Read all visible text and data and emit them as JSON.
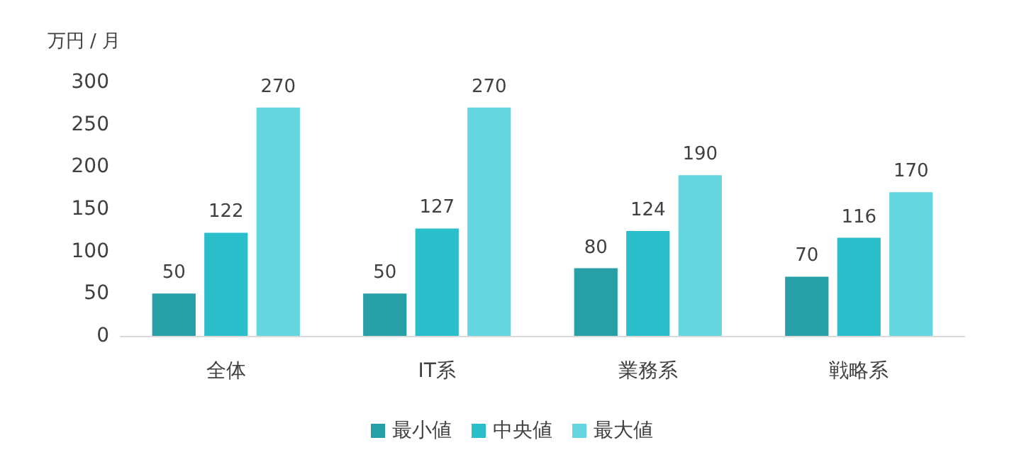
{
  "chart_data": {
    "type": "bar",
    "ylabel": "万円 / 月",
    "categories": [
      "全体",
      "IT系",
      "業務系",
      "戦略系"
    ],
    "series": [
      {
        "name": "最小値",
        "color": "#279fa6",
        "values": [
          50,
          50,
          80,
          70
        ]
      },
      {
        "name": "中央値",
        "color": "#2bbfcc",
        "values": [
          122,
          127,
          124,
          116
        ]
      },
      {
        "name": "最大値",
        "color": "#63d6e0",
        "values": [
          270,
          270,
          190,
          170
        ]
      }
    ],
    "ylim": [
      0,
      300
    ],
    "yticks": [
      0,
      50,
      100,
      150,
      200,
      250,
      300
    ],
    "grid": false,
    "legend": "bottom",
    "data_labels": true
  }
}
